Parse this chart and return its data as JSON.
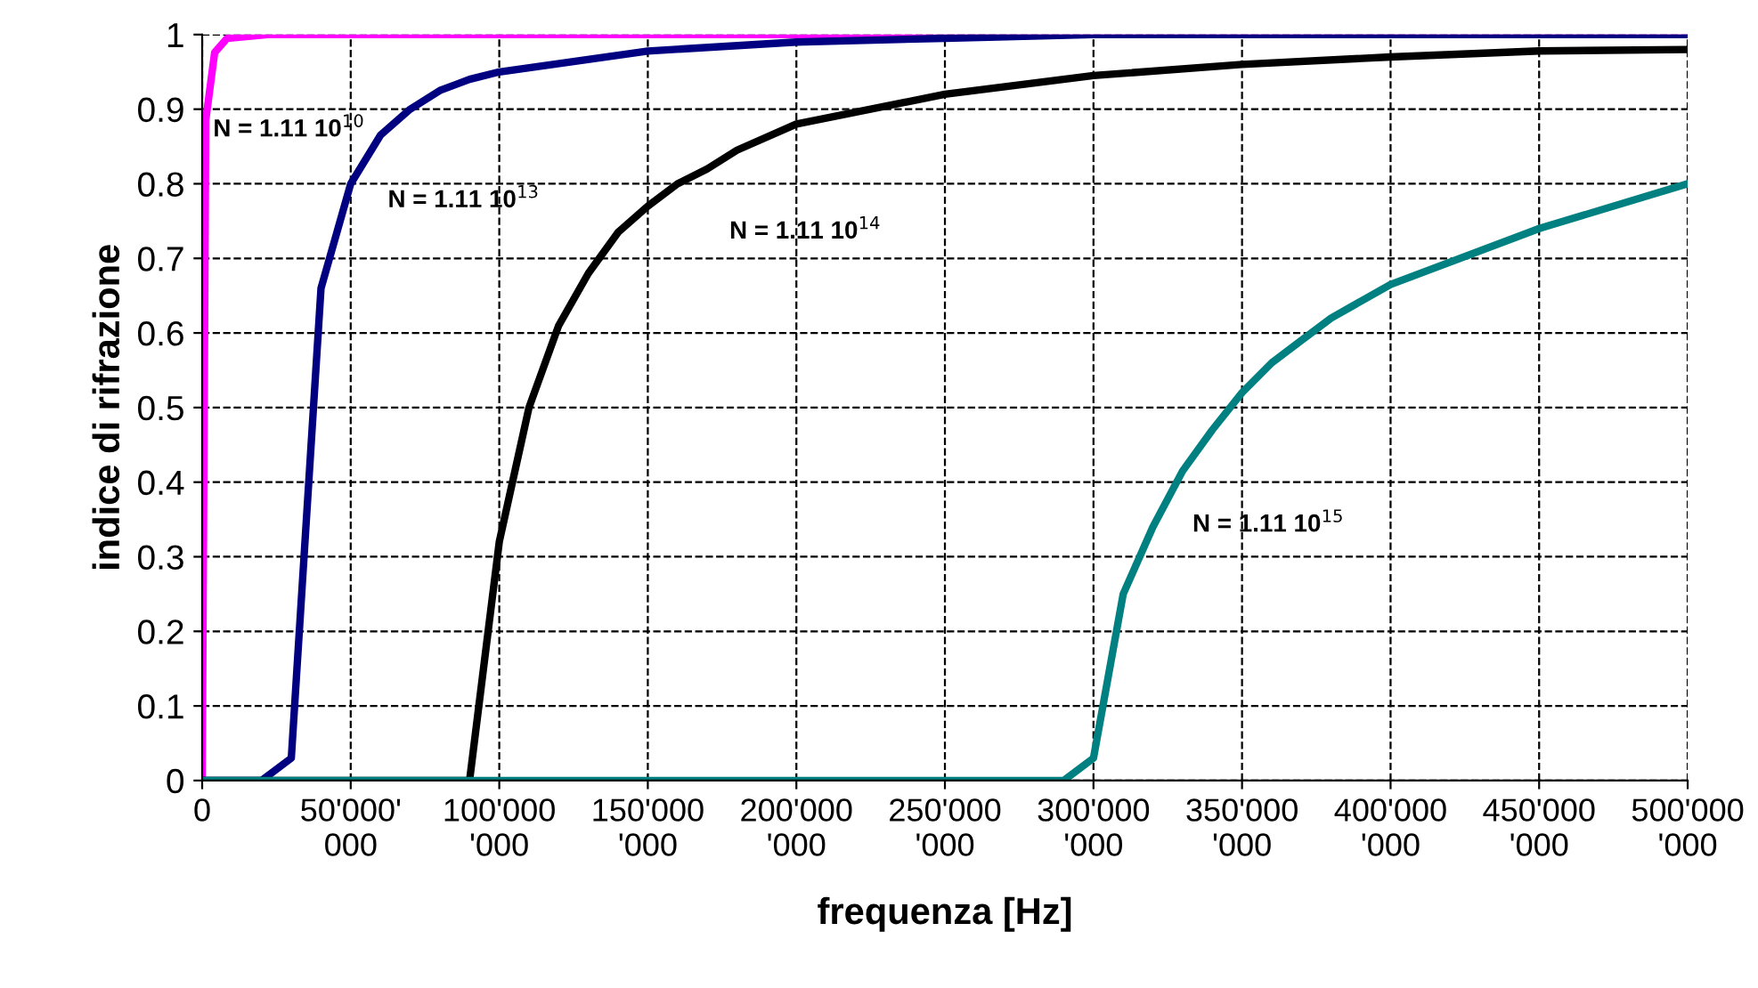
{
  "chart_data": {
    "type": "line",
    "xlabel": "frequenza [Hz]",
    "ylabel": "indice di rifrazione",
    "xlim": [
      0,
      500000000
    ],
    "ylim": [
      0,
      1
    ],
    "xticks": [
      0,
      {
        "value": 50000000,
        "label": "50'000'000"
      },
      {
        "value": 100000000,
        "label": "100'000'000"
      },
      {
        "value": 150000000,
        "label": "150'000'000"
      },
      {
        "value": 200000000,
        "label": "200'000'000"
      },
      {
        "value": 250000000,
        "label": "250'000'000"
      },
      {
        "value": 300000000,
        "label": "300'000'000"
      },
      {
        "value": 350000000,
        "label": "350'000'000"
      },
      {
        "value": 400000000,
        "label": "400'000'000"
      },
      {
        "value": 450000000,
        "label": "450'000'000"
      },
      {
        "value": 500000000,
        "label": "500'000'000"
      }
    ],
    "yticks": [
      0,
      0.1,
      0.2,
      0.3,
      0.4,
      0.5,
      0.6,
      0.7,
      0.8,
      0.9,
      1
    ],
    "grid": true,
    "line_style": "solid",
    "marker": "none",
    "series": [
      {
        "name": "N = 1.11 10$^{10}$",
        "color": "#ff00ff",
        "x": [
          0,
          1200000,
          4200000,
          8400000,
          22000000,
          500000000
        ],
        "values": [
          0,
          0.885,
          0.976,
          0.995,
          1,
          1
        ]
      },
      {
        "name": "N = 1.11 10$^{13}$",
        "color": "#000080",
        "x": [
          0,
          20000000,
          30000000,
          40000000,
          50000000,
          60000000,
          70000000,
          80000000,
          90000000,
          100000000,
          150000000,
          200000000,
          250000000,
          300000000,
          500000000
        ],
        "values": [
          0,
          0,
          0.03,
          0.66,
          0.8,
          0.865,
          0.9,
          0.925,
          0.94,
          0.95,
          0.978,
          0.99,
          0.995,
          1,
          1
        ]
      },
      {
        "name": "N = 1.11 10$^{14}$",
        "color": "#000000",
        "x": [
          0,
          90000000,
          100000000,
          110000000,
          120000000,
          130000000,
          140000000,
          150000000,
          160000000,
          170000000,
          180000000,
          200000000,
          250000000,
          300000000,
          350000000,
          400000000,
          450000000,
          500000000
        ],
        "values": [
          0,
          0,
          0.32,
          0.5,
          0.61,
          0.68,
          0.735,
          0.77,
          0.8,
          0.82,
          0.845,
          0.88,
          0.92,
          0.945,
          0.96,
          0.97,
          0.978,
          0.98
        ]
      },
      {
        "name": "N = 1.11 10$^{15}$",
        "color": "#008080",
        "x": [
          0,
          290000000,
          300000000,
          310000000,
          320000000,
          330000000,
          340000000,
          350000000,
          360000000,
          370000000,
          380000000,
          400000000,
          450000000,
          500000000
        ],
        "values": [
          0,
          0,
          0.03,
          0.25,
          0.34,
          0.415,
          0.47,
          0.52,
          0.56,
          0.59,
          0.62,
          0.665,
          0.74,
          0.8
        ]
      }
    ]
  }
}
